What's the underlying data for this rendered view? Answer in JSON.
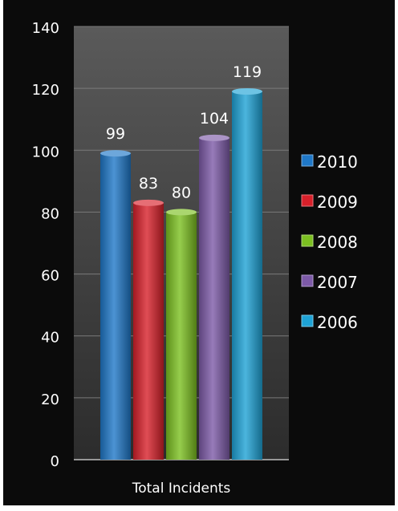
{
  "chart_data": {
    "type": "bar",
    "title": "",
    "xlabel": "",
    "ylabel": "",
    "categories": [
      "Total Incidents"
    ],
    "ylim": [
      0,
      140
    ],
    "yticks": [
      0,
      20,
      40,
      60,
      80,
      100,
      120,
      140
    ],
    "grid": true,
    "legend_position": "right",
    "series": [
      {
        "name": "2010",
        "values": [
          99
        ],
        "color": "#1f78c8"
      },
      {
        "name": "2009",
        "values": [
          83
        ],
        "color": "#d8202a"
      },
      {
        "name": "2008",
        "values": [
          80
        ],
        "color": "#7cc021"
      },
      {
        "name": "2007",
        "values": [
          104
        ],
        "color": "#7d5aa8"
      },
      {
        "name": "2006",
        "values": [
          119
        ],
        "color": "#1ea3d6"
      }
    ]
  }
}
